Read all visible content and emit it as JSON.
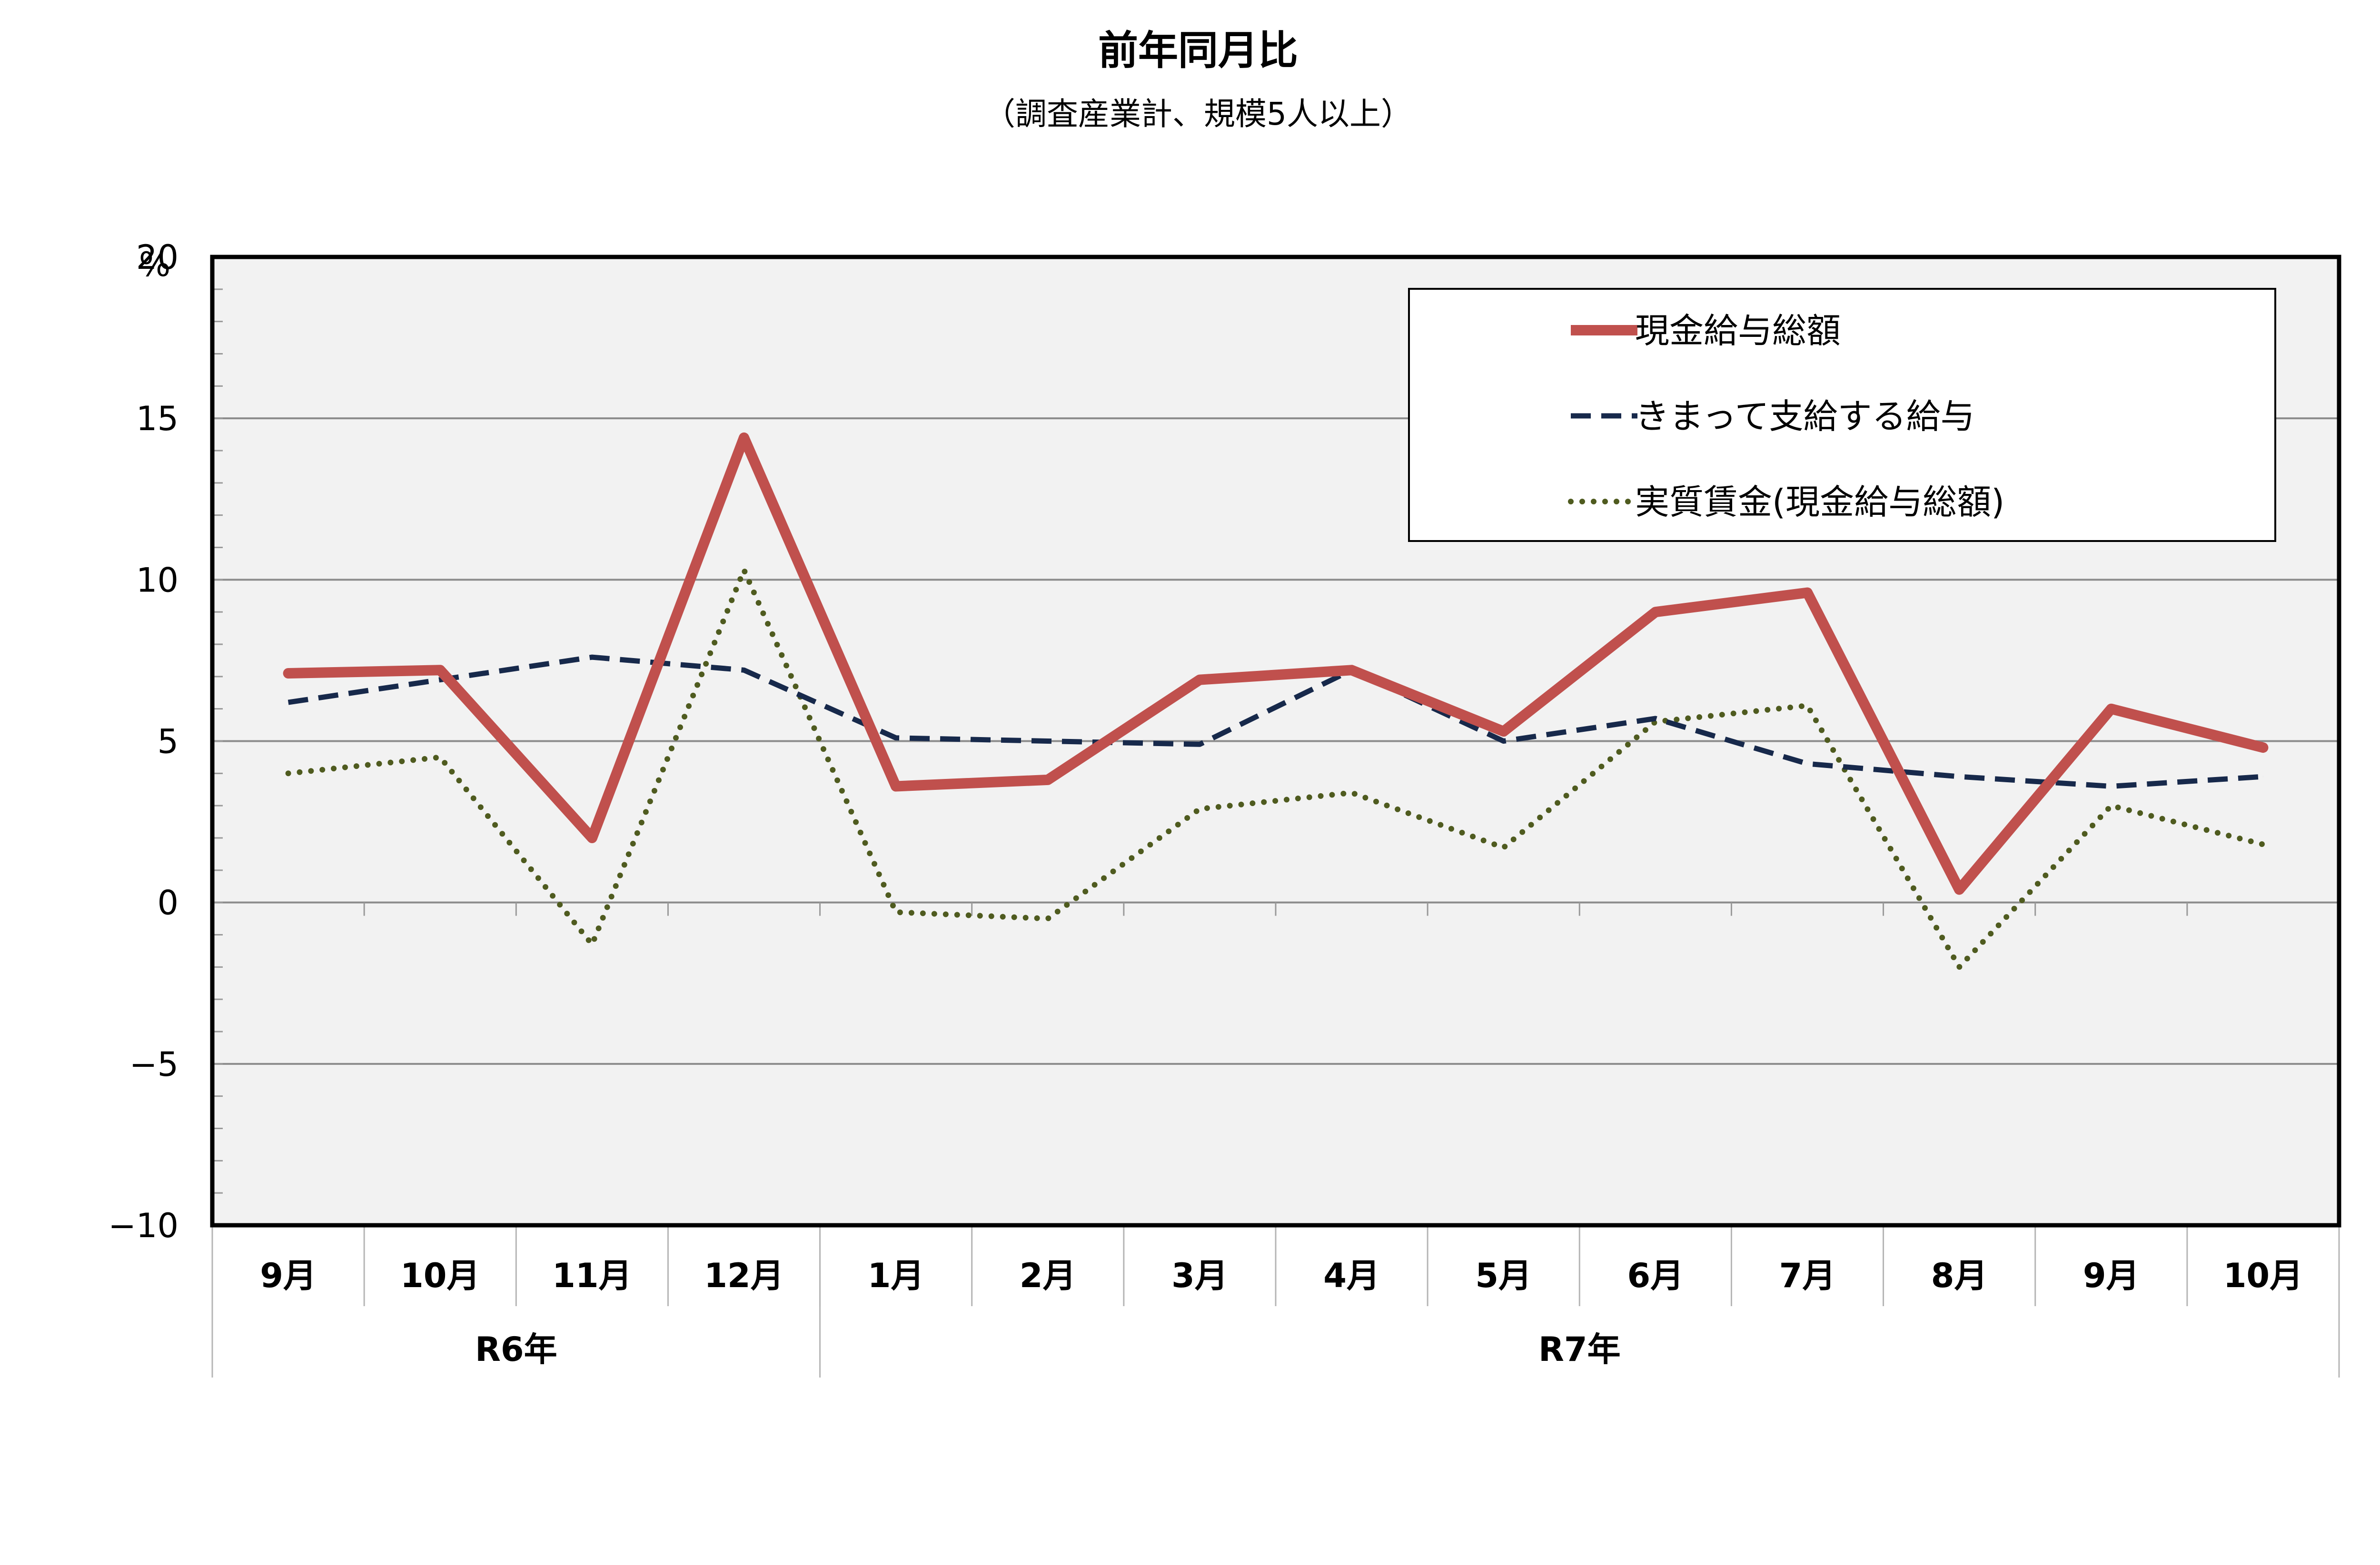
{
  "chart_data": {
    "type": "line",
    "title": "前年同月比",
    "subtitle": "（調査産業計、規模5人以上）",
    "ylabel": "%",
    "ylim": [
      -10,
      20
    ],
    "yticks": [
      20,
      15,
      10,
      5,
      0,
      -5,
      -10
    ],
    "ytick_labels": [
      "20",
      "15",
      "10",
      "5",
      "0",
      "−5",
      "−10"
    ],
    "categories": [
      "9月",
      "10月",
      "11月",
      "12月",
      "1月",
      "2月",
      "3月",
      "4月",
      "5月",
      "6月",
      "7月",
      "8月",
      "9月",
      "10月"
    ],
    "groups": [
      {
        "label": "R6年",
        "span": 4
      },
      {
        "label": "R7年",
        "span": 10
      }
    ],
    "grid": true,
    "legend_position": "top-right",
    "series": [
      {
        "name": "現金給与総額",
        "style": "solid",
        "color": "#c0504d",
        "values": [
          7.1,
          7.2,
          2.0,
          14.4,
          3.6,
          3.8,
          6.9,
          7.2,
          5.3,
          9.0,
          9.6,
          0.4,
          6.0,
          4.8
        ]
      },
      {
        "name": "きまって支給する給与",
        "style": "dashed",
        "color": "#17294b",
        "values": [
          6.2,
          6.9,
          7.6,
          7.2,
          5.1,
          5.0,
          4.9,
          7.2,
          5.0,
          5.7,
          4.3,
          3.9,
          3.6,
          3.9
        ]
      },
      {
        "name": "実質賃金(現金給与総額)",
        "style": "dotted",
        "color": "#4f5b1f",
        "values": [
          4.0,
          4.5,
          -1.3,
          10.3,
          -0.3,
          -0.5,
          2.9,
          3.4,
          1.7,
          5.6,
          6.1,
          -2.0,
          3.0,
          1.8
        ]
      }
    ]
  }
}
